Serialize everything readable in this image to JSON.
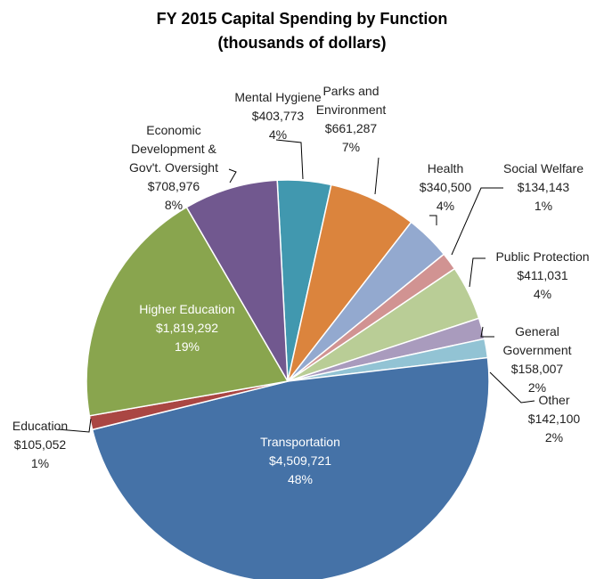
{
  "chart_data": {
    "type": "pie",
    "title": "FY 2015 Capital Spending by Function",
    "subtitle": "(thousands of dollars)",
    "categories": [
      "Mental Hygiene",
      "Parks and Environment",
      "Health",
      "Social Welfare",
      "Public Protection",
      "General Government",
      "Other",
      "Transportation",
      "Education",
      "Higher Education",
      "Economic Development & Gov't. Oversight"
    ],
    "values": [
      403773,
      661287,
      340500,
      134143,
      411031,
      158007,
      142100,
      4509721,
      105052,
      1819292,
      708976
    ],
    "value_labels": [
      "$403,773",
      "$661,287",
      "$340,500",
      "$134,143",
      "$411,031",
      "$158,007",
      "$142,100",
      "$4,509,721",
      "$105,052",
      "$1,819,292",
      "$708,976"
    ],
    "percent_labels": [
      "4%",
      "7%",
      "4%",
      "1%",
      "4%",
      "2%",
      "2%",
      "48%",
      "1%",
      "19%",
      "8%"
    ],
    "colors": [
      "#4198af",
      "#db843d",
      "#93a9cf",
      "#d19392",
      "#b9cd96",
      "#a99bbd",
      "#92c3d4",
      "#4572a7",
      "#aa4643",
      "#89a54e",
      "#71588f"
    ]
  }
}
